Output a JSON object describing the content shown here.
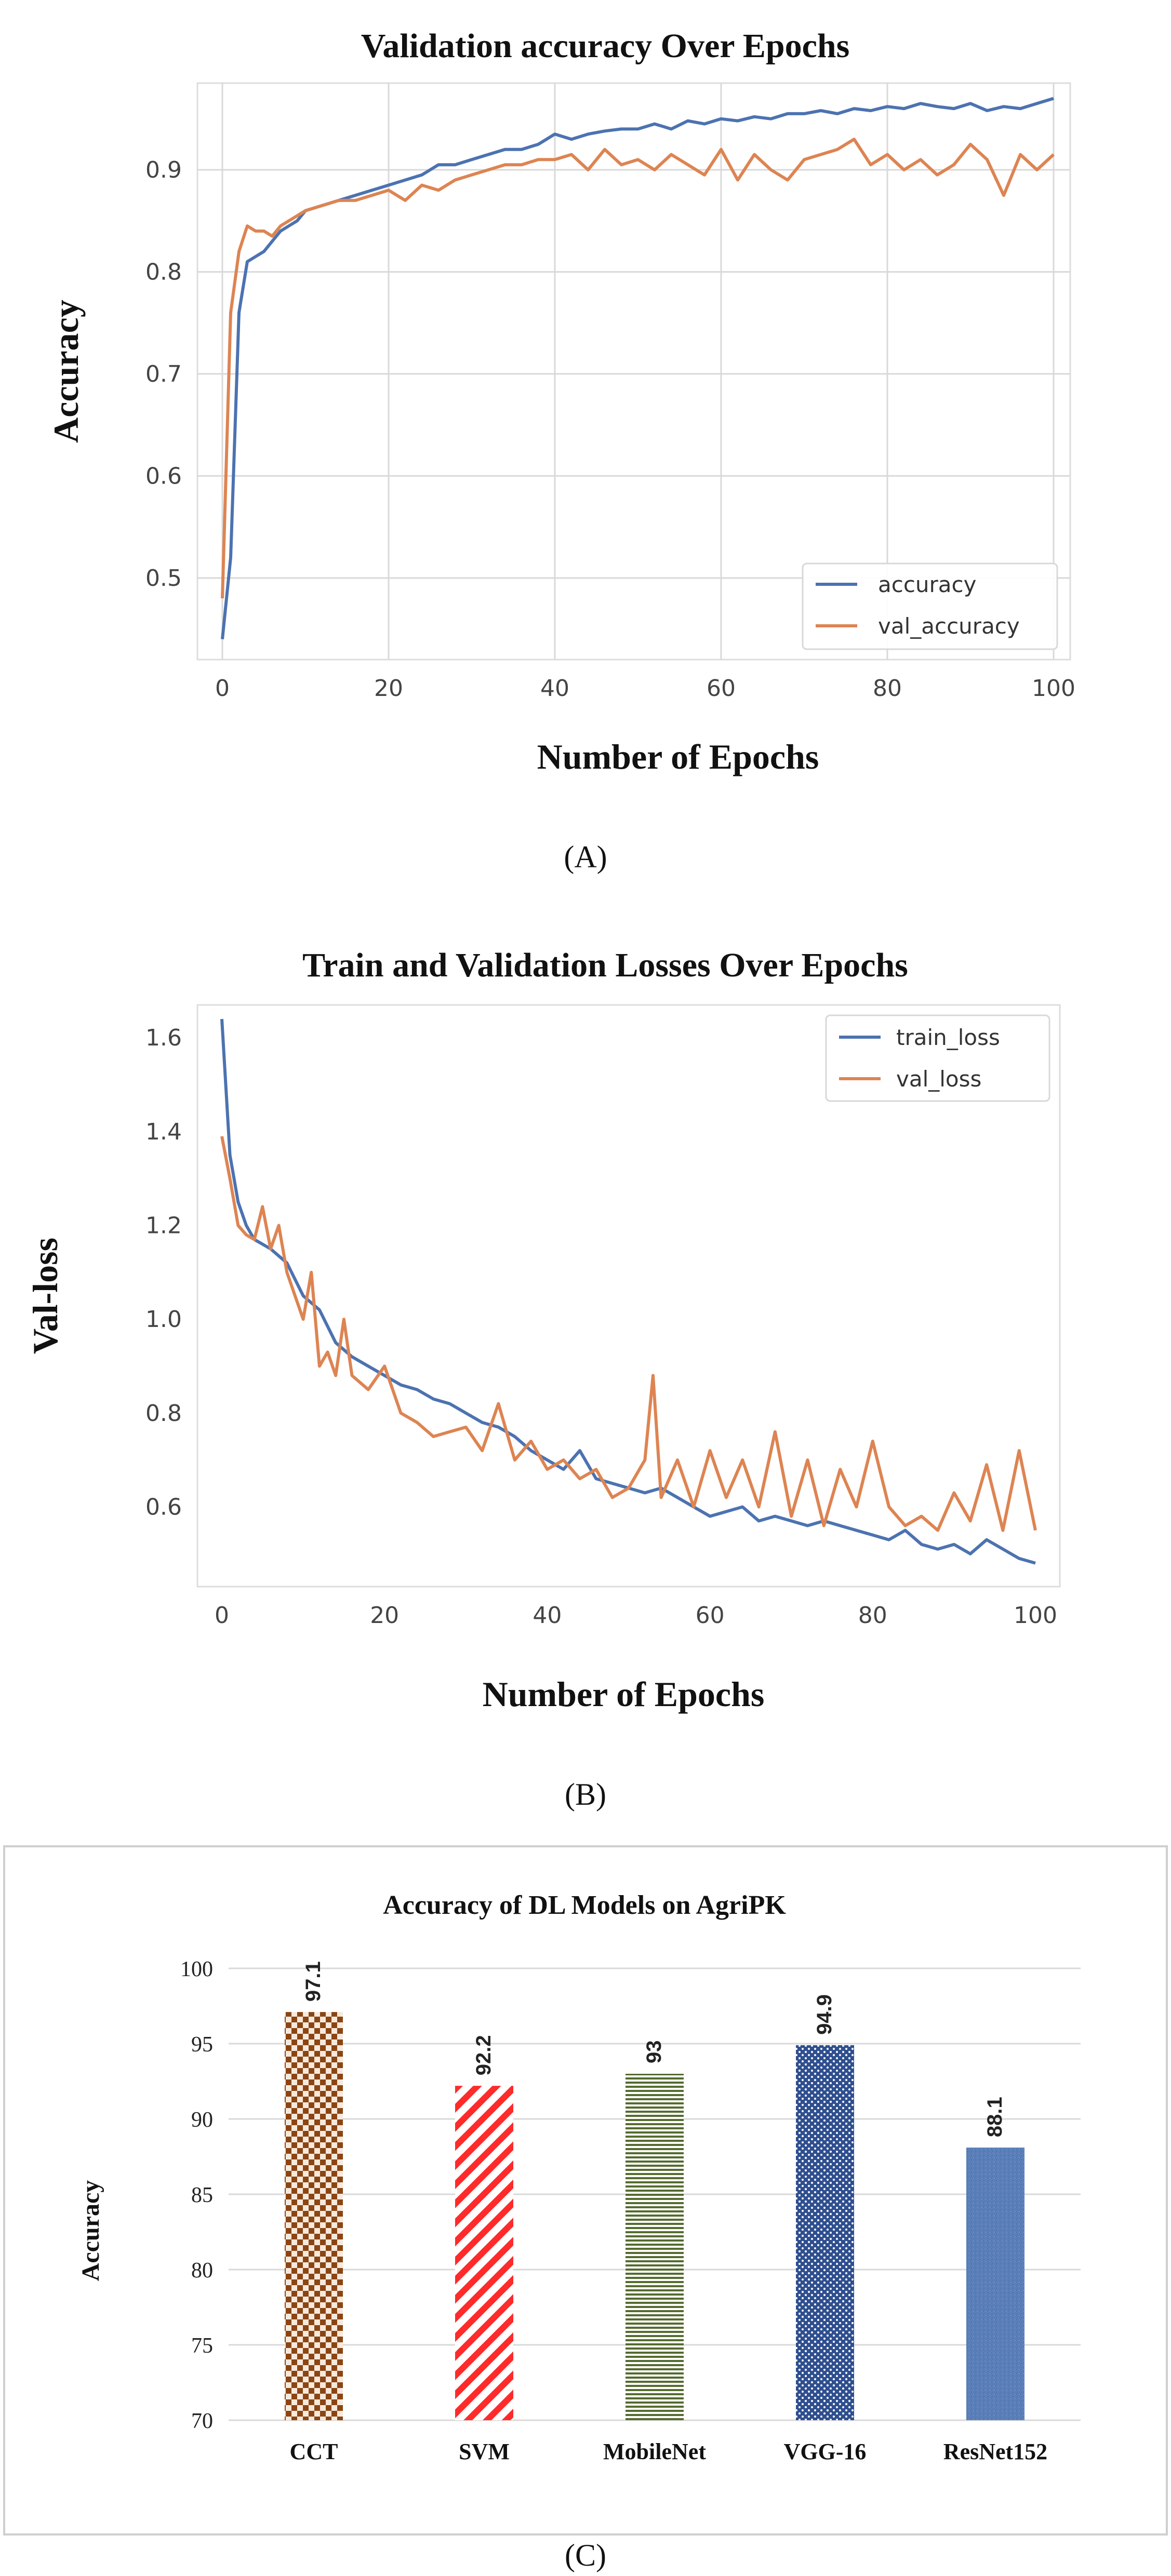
{
  "chart_data": [
    {
      "type": "line",
      "title": "Validation accuracy Over Epochs",
      "xlabel": "Number of Epochs",
      "ylabel": "Accuracy",
      "xlim": [
        -3,
        102
      ],
      "ylim": [
        0.42,
        0.985
      ],
      "xticks": [
        "0",
        "20",
        "40",
        "60",
        "80",
        "100"
      ],
      "yticks": [
        "0.5",
        "0.6",
        "0.7",
        "0.8",
        "0.9"
      ],
      "grid": true,
      "legend_position": "bottom-right",
      "panel_label": "(A)",
      "colors": {
        "accuracy": "#4c72b0",
        "val_accuracy": "#dd8452"
      },
      "series": [
        {
          "name": "accuracy",
          "x": [
            0,
            1,
            2,
            3,
            4,
            5,
            6,
            7,
            8,
            9,
            10,
            12,
            14,
            16,
            18,
            20,
            22,
            24,
            26,
            28,
            30,
            32,
            34,
            36,
            38,
            40,
            42,
            44,
            46,
            48,
            50,
            52,
            54,
            56,
            58,
            60,
            62,
            64,
            66,
            68,
            70,
            72,
            74,
            76,
            78,
            80,
            82,
            84,
            86,
            88,
            90,
            92,
            94,
            96,
            98,
            100
          ],
          "y": [
            0.44,
            0.52,
            0.76,
            0.81,
            0.815,
            0.82,
            0.83,
            0.84,
            0.845,
            0.85,
            0.86,
            0.865,
            0.87,
            0.875,
            0.88,
            0.885,
            0.89,
            0.895,
            0.905,
            0.905,
            0.91,
            0.915,
            0.92,
            0.92,
            0.925,
            0.935,
            0.93,
            0.935,
            0.938,
            0.94,
            0.94,
            0.945,
            0.94,
            0.948,
            0.945,
            0.95,
            0.948,
            0.952,
            0.95,
            0.955,
            0.955,
            0.958,
            0.955,
            0.96,
            0.958,
            0.962,
            0.96,
            0.965,
            0.962,
            0.96,
            0.965,
            0.958,
            0.962,
            0.96,
            0.965,
            0.97
          ]
        },
        {
          "name": "val_accuracy",
          "x": [
            0,
            1,
            2,
            3,
            4,
            5,
            6,
            7,
            8,
            9,
            10,
            12,
            14,
            16,
            18,
            20,
            22,
            24,
            26,
            28,
            30,
            32,
            34,
            36,
            38,
            40,
            42,
            44,
            46,
            48,
            50,
            52,
            54,
            56,
            58,
            60,
            62,
            64,
            66,
            68,
            70,
            72,
            74,
            76,
            78,
            80,
            82,
            84,
            86,
            88,
            90,
            92,
            94,
            96,
            98,
            100
          ],
          "y": [
            0.48,
            0.76,
            0.82,
            0.845,
            0.84,
            0.84,
            0.835,
            0.845,
            0.85,
            0.855,
            0.86,
            0.865,
            0.87,
            0.87,
            0.875,
            0.88,
            0.87,
            0.885,
            0.88,
            0.89,
            0.895,
            0.9,
            0.905,
            0.905,
            0.91,
            0.91,
            0.915,
            0.9,
            0.92,
            0.905,
            0.91,
            0.9,
            0.915,
            0.905,
            0.895,
            0.92,
            0.89,
            0.915,
            0.9,
            0.89,
            0.91,
            0.915,
            0.92,
            0.93,
            0.905,
            0.915,
            0.9,
            0.91,
            0.895,
            0.905,
            0.925,
            0.91,
            0.875,
            0.915,
            0.9,
            0.915
          ]
        }
      ]
    },
    {
      "type": "line",
      "title": "Train and Validation Losses Over Epochs",
      "xlabel": "Number of Epochs",
      "ylabel": "Val-loss",
      "xlim": [
        -3,
        103
      ],
      "ylim": [
        0.43,
        1.67
      ],
      "xticks": [
        "0",
        "20",
        "40",
        "60",
        "80",
        "100"
      ],
      "yticks": [
        "0.6",
        "0.8",
        "1.0",
        "1.2",
        "1.4",
        "1.6"
      ],
      "grid": false,
      "legend_position": "top-right",
      "panel_label": "(B)",
      "colors": {
        "train_loss": "#4c72b0",
        "val_loss": "#dd8452"
      },
      "series": [
        {
          "name": "train_loss",
          "x": [
            0,
            1,
            2,
            3,
            4,
            5,
            6,
            8,
            10,
            12,
            14,
            16,
            18,
            20,
            22,
            24,
            26,
            28,
            30,
            32,
            34,
            36,
            38,
            40,
            42,
            44,
            46,
            48,
            50,
            52,
            54,
            56,
            58,
            60,
            62,
            64,
            66,
            68,
            70,
            72,
            74,
            76,
            78,
            80,
            82,
            84,
            86,
            88,
            90,
            92,
            94,
            96,
            98,
            100
          ],
          "y": [
            1.64,
            1.35,
            1.25,
            1.2,
            1.17,
            1.16,
            1.15,
            1.12,
            1.05,
            1.02,
            0.95,
            0.92,
            0.9,
            0.88,
            0.86,
            0.85,
            0.83,
            0.82,
            0.8,
            0.78,
            0.77,
            0.75,
            0.72,
            0.7,
            0.68,
            0.72,
            0.66,
            0.65,
            0.64,
            0.63,
            0.64,
            0.62,
            0.6,
            0.58,
            0.59,
            0.6,
            0.57,
            0.58,
            0.57,
            0.56,
            0.57,
            0.56,
            0.55,
            0.54,
            0.53,
            0.55,
            0.52,
            0.51,
            0.52,
            0.5,
            0.53,
            0.51,
            0.49,
            0.48
          ]
        },
        {
          "name": "val_loss",
          "x": [
            0,
            1,
            2,
            3,
            4,
            5,
            6,
            7,
            8,
            9,
            10,
            11,
            12,
            13,
            14,
            15,
            16,
            18,
            20,
            22,
            24,
            26,
            28,
            30,
            32,
            34,
            36,
            38,
            40,
            42,
            44,
            46,
            48,
            50,
            52,
            53,
            54,
            56,
            58,
            60,
            62,
            64,
            66,
            68,
            70,
            72,
            74,
            76,
            78,
            80,
            82,
            84,
            86,
            88,
            90,
            92,
            94,
            96,
            98,
            100
          ],
          "y": [
            1.39,
            1.3,
            1.2,
            1.18,
            1.17,
            1.24,
            1.15,
            1.2,
            1.1,
            1.05,
            1.0,
            1.1,
            0.9,
            0.93,
            0.88,
            1.0,
            0.88,
            0.85,
            0.9,
            0.8,
            0.78,
            0.75,
            0.76,
            0.77,
            0.72,
            0.82,
            0.7,
            0.74,
            0.68,
            0.7,
            0.66,
            0.68,
            0.62,
            0.64,
            0.7,
            0.88,
            0.62,
            0.7,
            0.6,
            0.72,
            0.62,
            0.7,
            0.6,
            0.76,
            0.58,
            0.7,
            0.56,
            0.68,
            0.6,
            0.74,
            0.6,
            0.56,
            0.58,
            0.55,
            0.63,
            0.57,
            0.69,
            0.55,
            0.72,
            0.55
          ]
        }
      ]
    },
    {
      "type": "bar",
      "title": "Accuracy of DL Models on AgriPK",
      "xlabel": "",
      "ylabel": "Accuracy",
      "ylim": [
        70,
        100
      ],
      "yticks": [
        "70",
        "75",
        "80",
        "85",
        "90",
        "95",
        "100"
      ],
      "grid": true,
      "panel_label": "(C)",
      "categories": [
        "CCT",
        "SVM",
        "MobileNet",
        "VGG-16",
        "ResNet152"
      ],
      "values": [
        97.1,
        92.2,
        93,
        94.9,
        88.1
      ],
      "value_labels": [
        "97.1",
        "92.2",
        "93",
        "94.9",
        "88.1"
      ],
      "colors": [
        "#8b4513",
        "#ff2a2a",
        "#556b2f",
        "#2f4f8f",
        "#5b7fb8"
      ]
    }
  ]
}
